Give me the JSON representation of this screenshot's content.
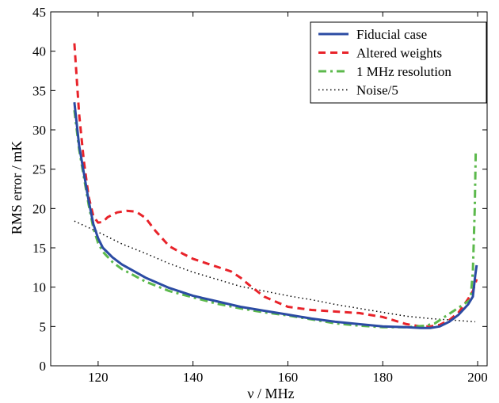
{
  "chart_data": {
    "type": "line",
    "xlabel": "ν / MHz",
    "ylabel": "RMS error / mK",
    "xlim": [
      110,
      202
    ],
    "ylim": [
      0,
      45
    ],
    "xticks": [
      120,
      140,
      160,
      180,
      200
    ],
    "yticks": [
      0,
      5,
      10,
      15,
      20,
      25,
      30,
      35,
      40,
      45
    ],
    "grid": false,
    "legend_position": "top-right",
    "series": [
      {
        "name": "Fiducial case",
        "color": "#2b4ba3",
        "style": "solid",
        "points": [
          [
            115,
            33.5
          ],
          [
            116,
            28
          ],
          [
            117,
            24.5
          ],
          [
            118,
            21
          ],
          [
            119,
            18
          ],
          [
            120,
            16.2
          ],
          [
            121,
            15
          ],
          [
            123,
            13.8
          ],
          [
            125,
            12.9
          ],
          [
            130,
            11.2
          ],
          [
            135,
            9.9
          ],
          [
            140,
            8.9
          ],
          [
            145,
            8.2
          ],
          [
            150,
            7.5
          ],
          [
            155,
            7.0
          ],
          [
            160,
            6.5
          ],
          [
            165,
            6.0
          ],
          [
            170,
            5.6
          ],
          [
            175,
            5.3
          ],
          [
            180,
            5.0
          ],
          [
            185,
            4.9
          ],
          [
            188,
            4.8
          ],
          [
            190,
            4.8
          ],
          [
            192,
            5.0
          ],
          [
            194,
            5.6
          ],
          [
            196,
            6.5
          ],
          [
            198,
            7.8
          ],
          [
            199,
            8.8
          ],
          [
            199.5,
            11.5
          ],
          [
            199.8,
            12.8
          ]
        ]
      },
      {
        "name": "Altered weights",
        "color": "#e8232a",
        "style": "dashed",
        "points": [
          [
            115,
            41
          ],
          [
            116,
            32
          ],
          [
            117,
            26
          ],
          [
            118,
            21.5
          ],
          [
            119,
            19
          ],
          [
            120,
            18.2
          ],
          [
            121,
            18.3
          ],
          [
            122,
            18.9
          ],
          [
            124,
            19.5
          ],
          [
            126,
            19.7
          ],
          [
            128,
            19.6
          ],
          [
            130,
            18.8
          ],
          [
            132,
            17.2
          ],
          [
            135,
            15.2
          ],
          [
            138,
            14.2
          ],
          [
            140,
            13.6
          ],
          [
            143,
            13.0
          ],
          [
            146,
            12.4
          ],
          [
            148,
            12.0
          ],
          [
            150,
            11.2
          ],
          [
            152,
            10.2
          ],
          [
            155,
            8.8
          ],
          [
            158,
            8.0
          ],
          [
            160,
            7.5
          ],
          [
            165,
            7.1
          ],
          [
            170,
            6.9
          ],
          [
            175,
            6.7
          ],
          [
            180,
            6.2
          ],
          [
            185,
            5.3
          ],
          [
            188,
            5.0
          ],
          [
            190,
            5.0
          ],
          [
            192,
            5.2
          ],
          [
            194,
            5.8
          ],
          [
            196,
            6.8
          ],
          [
            198,
            8.5
          ],
          [
            199,
            9.5
          ],
          [
            199.8,
            11
          ]
        ]
      },
      {
        "name": "1 MHz resolution",
        "color": "#5cb94c",
        "style": "dashdot",
        "points": [
          [
            115,
            32.5
          ],
          [
            116,
            27.5
          ],
          [
            117,
            24
          ],
          [
            118,
            20.5
          ],
          [
            119,
            17.5
          ],
          [
            120,
            15.6
          ],
          [
            121,
            14.5
          ],
          [
            123,
            13.2
          ],
          [
            125,
            12.3
          ],
          [
            130,
            10.7
          ],
          [
            135,
            9.5
          ],
          [
            140,
            8.7
          ],
          [
            145,
            7.9
          ],
          [
            150,
            7.3
          ],
          [
            155,
            6.8
          ],
          [
            160,
            6.4
          ],
          [
            165,
            5.9
          ],
          [
            170,
            5.4
          ],
          [
            175,
            5.1
          ],
          [
            180,
            4.9
          ],
          [
            185,
            4.9
          ],
          [
            189,
            5.1
          ],
          [
            191,
            5.4
          ],
          [
            193,
            6.2
          ],
          [
            195,
            7.0
          ],
          [
            197,
            7.8
          ],
          [
            198.5,
            8.4
          ],
          [
            199,
            12
          ],
          [
            199.4,
            20
          ],
          [
            199.6,
            27
          ]
        ]
      },
      {
        "name": "Noise/5",
        "color": "#000000",
        "style": "dotted",
        "points": [
          [
            115,
            18.4
          ],
          [
            120,
            17
          ],
          [
            125,
            15.5
          ],
          [
            130,
            14.3
          ],
          [
            135,
            13.0
          ],
          [
            140,
            11.9
          ],
          [
            145,
            11.0
          ],
          [
            150,
            10.1
          ],
          [
            155,
            9.5
          ],
          [
            160,
            8.9
          ],
          [
            165,
            8.4
          ],
          [
            170,
            7.8
          ],
          [
            175,
            7.3
          ],
          [
            180,
            6.8
          ],
          [
            185,
            6.3
          ],
          [
            190,
            6.0
          ],
          [
            195,
            5.8
          ],
          [
            199.5,
            5.6
          ]
        ]
      }
    ]
  }
}
